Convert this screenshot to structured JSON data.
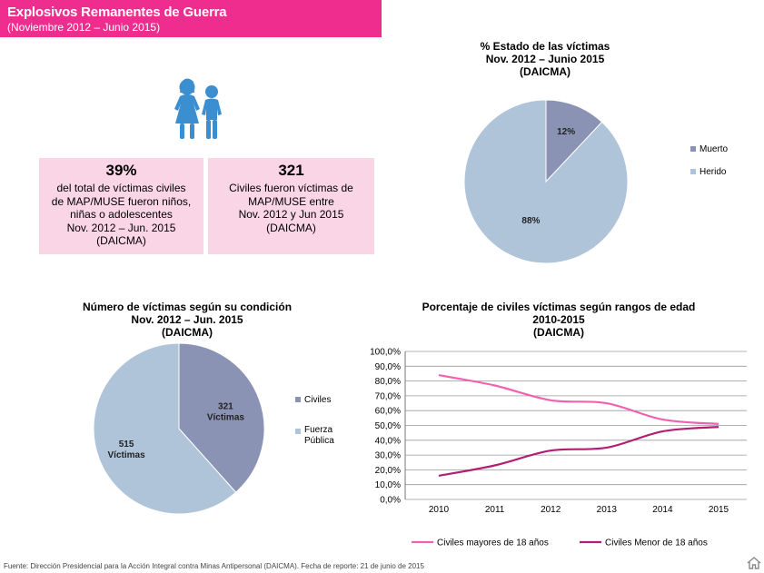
{
  "header": {
    "title": "Explosivos Remanentes de Guerra",
    "subtitle": "(Noviembre 2012 – Junio 2015)"
  },
  "stats": [
    {
      "value": "39%",
      "lines": [
        "del total de víctimas civiles",
        "de MAP/MUSE fueron niños,",
        "niñas o adolescentes",
        "Nov. 2012 – Jun. 2015",
        "(DAICMA)"
      ]
    },
    {
      "value": "321",
      "lines": [
        "Civiles fueron víctimas de",
        "MAP/MUSE entre",
        "Nov. 2012 y Jun 2015",
        "(DAICMA)"
      ]
    }
  ],
  "colors": {
    "pink": "#ee2d8f",
    "stat_bg": "#f9d5e5",
    "slate": "#8b93b5",
    "lightblue": "#afc4d8",
    "line_pink": "#f062b0",
    "line_dark": "#b01f74"
  },
  "icons": [
    "children-icon",
    "home-icon"
  ],
  "chart_data": [
    {
      "type": "pie",
      "title": [
        "% Estado de las víctimas",
        "Nov. 2012 – Junio 2015",
        "(DAICMA)"
      ],
      "slices": [
        {
          "label": "Muerto",
          "value": 12,
          "display": "12%"
        },
        {
          "label": "Herido",
          "value": 88,
          "display": "88%"
        }
      ]
    },
    {
      "type": "pie",
      "title": [
        "Número de víctimas según su condición",
        "Nov. 2012 – Jun. 2015",
        "(DAICMA)"
      ],
      "slices": [
        {
          "label": "Civiles",
          "value": 321,
          "display": [
            "321",
            "Víctimas"
          ]
        },
        {
          "label": "Fuerza Pública",
          "value": 515,
          "display": [
            "515",
            "Víctimas"
          ]
        }
      ]
    },
    {
      "type": "line",
      "title": [
        "Porcentaje de civiles víctimas según rangos de edad",
        "2010-2015",
        "(DAICMA)"
      ],
      "x": [
        "2010",
        "2011",
        "2012",
        "2013",
        "2014",
        "2015"
      ],
      "yticks": [
        "0,0%",
        "10,0%",
        "20,0%",
        "30,0%",
        "40,0%",
        "50,0%",
        "60,0%",
        "70,0%",
        "80,0%",
        "90,0%",
        "100,0%"
      ],
      "ylim": [
        0,
        100
      ],
      "grid": true,
      "legend": "bottom",
      "series": [
        {
          "name": "Civiles mayores de 18 años",
          "values": [
            84,
            77,
            67,
            65,
            54,
            51
          ]
        },
        {
          "name": "Civiles Menor de 18 años",
          "values": [
            16,
            23,
            33,
            35,
            46,
            49
          ]
        }
      ]
    }
  ],
  "footer": "Fuente:  Dirección Presidencial para la Acción Integral contra Minas Antipersonal (DAICMA). Fecha de reporte: 21 de junio de 2015"
}
